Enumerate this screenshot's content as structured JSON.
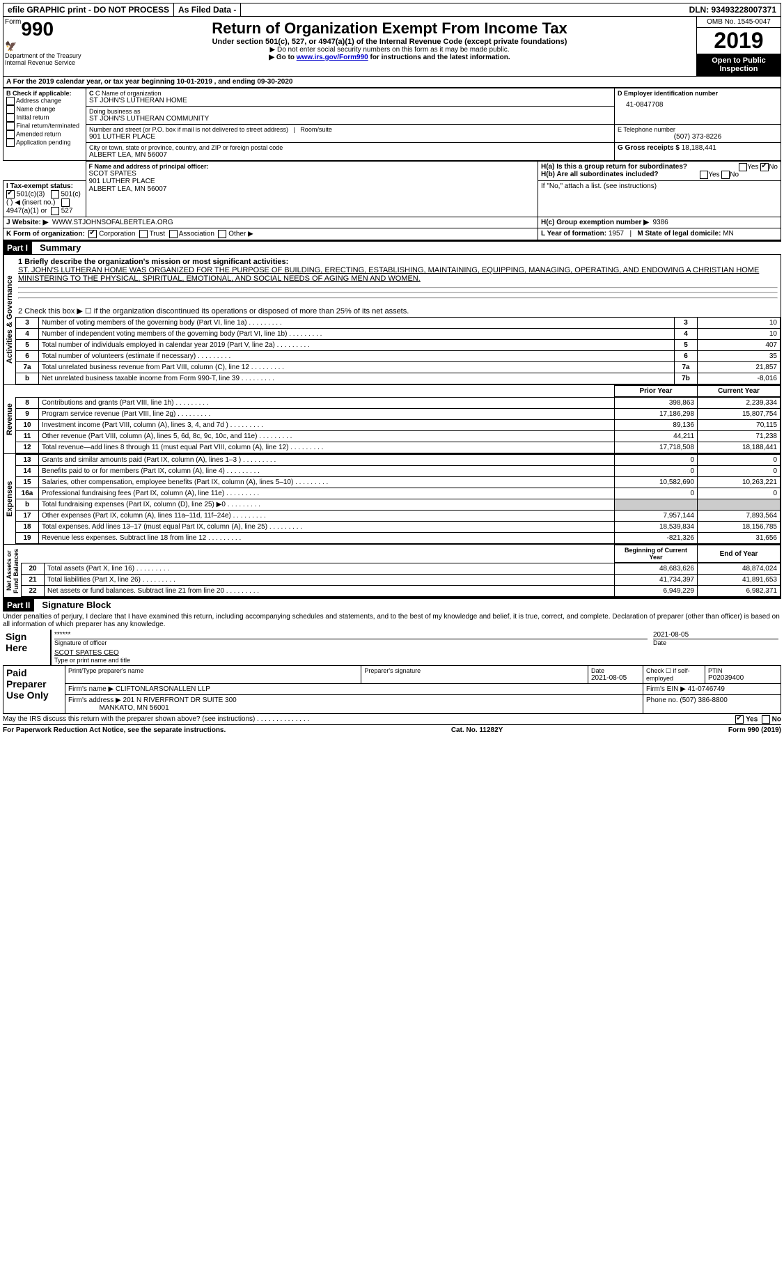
{
  "topbar": {
    "efile": "efile GRAPHIC print - DO NOT PROCESS",
    "asfiled": "As Filed Data -",
    "dln": "DLN: 93493228007371"
  },
  "header": {
    "form_prefix": "Form",
    "form_no": "990",
    "dept": "Department of the Treasury\nInternal Revenue Service",
    "title": "Return of Organization Exempt From Income Tax",
    "subtitle": "Under section 501(c), 527, or 4947(a)(1) of the Internal Revenue Code (except private foundations)",
    "sub2": "▶ Do not enter social security numbers on this form as it may be made public.",
    "sub3_pre": "▶ Go to ",
    "sub3_link": "www.irs.gov/Form990",
    "sub3_post": " for instructions and the latest information.",
    "omb": "OMB No. 1545-0047",
    "year": "2019",
    "open": "Open to Public Inspection"
  },
  "a_line": "A  For the 2019 calendar year, or tax year beginning 10-01-2019   , and ending 09-30-2020",
  "b": {
    "label": "B Check if applicable:",
    "opts": [
      "Address change",
      "Name change",
      "Initial return",
      "Final return/terminated",
      "Amended return",
      "Application pending"
    ]
  },
  "c": {
    "name_lbl": "C Name of organization",
    "name": "ST JOHN'S LUTHERAN HOME",
    "dba_lbl": "Doing business as",
    "dba": "ST JOHN'S LUTHERAN COMMUNITY",
    "addr_lbl": "Number and street (or P.O. box if mail is not delivered to street address)",
    "addr": "901 LUTHER PLACE",
    "room_lbl": "Room/suite",
    "city_lbl": "City or town, state or province, country, and ZIP or foreign postal code",
    "city": "ALBERT LEA, MN  56007"
  },
  "d": {
    "lbl": "D Employer identification number",
    "val": "41-0847708"
  },
  "e": {
    "lbl": "E Telephone number",
    "val": "(507) 373-8226"
  },
  "g": {
    "lbl": "G Gross receipts $",
    "val": "18,188,441"
  },
  "f": {
    "lbl": "F  Name and address of principal officer:",
    "name": "SCOT SPATES",
    "addr1": "901 LUTHER PLACE",
    "addr2": "ALBERT LEA, MN  56007"
  },
  "h": {
    "a": "H(a)  Is this a group return for subordinates?",
    "a_no": "No",
    "b": "H(b)  Are all subordinates included?",
    "b_note": "If \"No,\" attach a list. (see instructions)",
    "c": "H(c)  Group exemption number ▶",
    "c_val": "9386"
  },
  "i": {
    "lbl": "I  Tax-exempt status:",
    "opt1": "501(c)(3)",
    "opt2": "501(c) (  ) ◀ (insert no.)",
    "opt3": "4947(a)(1) or",
    "opt4": "527"
  },
  "j": {
    "lbl": "J  Website: ▶",
    "val": "WWW.STJOHNSOFALBERTLEA.ORG"
  },
  "k": {
    "lbl": "K Form of organization:",
    "corp": "Corporation",
    "trust": "Trust",
    "assoc": "Association",
    "other": "Other ▶"
  },
  "l": {
    "lbl": "L Year of formation:",
    "val": "1957"
  },
  "m": {
    "lbl": "M State of legal domicile:",
    "val": "MN"
  },
  "part1": {
    "tag": "Part I",
    "title": "Summary"
  },
  "mission_lbl": "1 Briefly describe the organization's mission or most significant activities:",
  "mission": "ST. JOHN'S LUTHERAN HOME WAS ORGANIZED FOR THE PURPOSE OF BUILDING, ERECTING, ESTABLISHING, MAINTAINING, EQUIPPING, MANAGING, OPERATING, AND ENDOWING A CHRISTIAN HOME MINISTERING TO THE PHYSICAL, SPIRITUAL, EMOTIONAL, AND SOCIAL NEEDS OF AGING MEN AND WOMEN.",
  "line2": "2  Check this box ▶ ☐ if the organization discontinued its operations or disposed of more than 25% of its net assets.",
  "gov_lines": [
    {
      "n": "3",
      "t": "Number of voting members of the governing body (Part VI, line 1a)",
      "box": "3",
      "v": "10"
    },
    {
      "n": "4",
      "t": "Number of independent voting members of the governing body (Part VI, line 1b)",
      "box": "4",
      "v": "10"
    },
    {
      "n": "5",
      "t": "Total number of individuals employed in calendar year 2019 (Part V, line 2a)",
      "box": "5",
      "v": "407"
    },
    {
      "n": "6",
      "t": "Total number of volunteers (estimate if necessary)",
      "box": "6",
      "v": "35"
    },
    {
      "n": "7a",
      "t": "Total unrelated business revenue from Part VIII, column (C), line 12",
      "box": "7a",
      "v": "21,857"
    },
    {
      "n": "b",
      "t": "Net unrelated business taxable income from Form 990-T, line 39",
      "box": "7b",
      "v": "-8,016"
    }
  ],
  "col_hdr": {
    "prior": "Prior Year",
    "current": "Current Year"
  },
  "rev_lines": [
    {
      "n": "8",
      "t": "Contributions and grants (Part VIII, line 1h)",
      "p": "398,863",
      "c": "2,239,334"
    },
    {
      "n": "9",
      "t": "Program service revenue (Part VIII, line 2g)",
      "p": "17,186,298",
      "c": "15,807,754"
    },
    {
      "n": "10",
      "t": "Investment income (Part VIII, column (A), lines 3, 4, and 7d )",
      "p": "89,136",
      "c": "70,115"
    },
    {
      "n": "11",
      "t": "Other revenue (Part VIII, column (A), lines 5, 6d, 8c, 9c, 10c, and 11e)",
      "p": "44,211",
      "c": "71,238"
    },
    {
      "n": "12",
      "t": "Total revenue—add lines 8 through 11 (must equal Part VIII, column (A), line 12)",
      "p": "17,718,508",
      "c": "18,188,441"
    }
  ],
  "exp_lines": [
    {
      "n": "13",
      "t": "Grants and similar amounts paid (Part IX, column (A), lines 1–3 )",
      "p": "0",
      "c": "0"
    },
    {
      "n": "14",
      "t": "Benefits paid to or for members (Part IX, column (A), line 4)",
      "p": "0",
      "c": "0"
    },
    {
      "n": "15",
      "t": "Salaries, other compensation, employee benefits (Part IX, column (A), lines 5–10)",
      "p": "10,582,690",
      "c": "10,263,221"
    },
    {
      "n": "16a",
      "t": "Professional fundraising fees (Part IX, column (A), line 11e)",
      "p": "0",
      "c": "0"
    },
    {
      "n": "b",
      "t": "Total fundraising expenses (Part IX, column (D), line 25) ▶0",
      "p": "",
      "c": "",
      "gray": true
    },
    {
      "n": "17",
      "t": "Other expenses (Part IX, column (A), lines 11a–11d, 11f–24e)",
      "p": "7,957,144",
      "c": "7,893,564"
    },
    {
      "n": "18",
      "t": "Total expenses. Add lines 13–17 (must equal Part IX, column (A), line 25)",
      "p": "18,539,834",
      "c": "18,156,785"
    },
    {
      "n": "19",
      "t": "Revenue less expenses. Subtract line 18 from line 12",
      "p": "-821,326",
      "c": "31,656"
    }
  ],
  "net_hdr": {
    "beg": "Beginning of Current Year",
    "end": "End of Year"
  },
  "net_lines": [
    {
      "n": "20",
      "t": "Total assets (Part X, line 16)",
      "p": "48,683,626",
      "c": "48,874,024"
    },
    {
      "n": "21",
      "t": "Total liabilities (Part X, line 26)",
      "p": "41,734,397",
      "c": "41,891,653"
    },
    {
      "n": "22",
      "t": "Net assets or fund balances. Subtract line 21 from line 20",
      "p": "6,949,229",
      "c": "6,982,371"
    }
  ],
  "vert": {
    "gov": "Activities & Governance",
    "rev": "Revenue",
    "exp": "Expenses",
    "net": "Net Assets or\nFund Balances"
  },
  "part2": {
    "tag": "Part II",
    "title": "Signature Block"
  },
  "perjury": "Under penalties of perjury, I declare that I have examined this return, including accompanying schedules and statements, and to the best of my knowledge and belief, it is true, correct, and complete. Declaration of preparer (other than officer) is based on all information of which preparer has any knowledge.",
  "sign": {
    "lbl": "Sign Here",
    "stars": "******",
    "sig_lbl": "Signature of officer",
    "date": "2021-08-05",
    "date_lbl": "Date",
    "name": "SCOT SPATES CEO",
    "name_lbl": "Type or print name and title"
  },
  "paid": {
    "lbl": "Paid Preparer Use Only",
    "prep_name_lbl": "Print/Type preparer's name",
    "prep_sig_lbl": "Preparer's signature",
    "date_lbl": "Date",
    "date": "2021-08-05",
    "check_lbl": "Check ☐ if self-employed",
    "ptin_lbl": "PTIN",
    "ptin": "P02039400",
    "firm_name_lbl": "Firm's name   ▶",
    "firm_name": "CLIFTONLARSONALLEN LLP",
    "firm_ein_lbl": "Firm's EIN ▶",
    "firm_ein": "41-0746749",
    "firm_addr_lbl": "Firm's address ▶",
    "firm_addr": "201 N RIVERFRONT DR SUITE 300",
    "firm_city": "MANKATO, MN  56001",
    "phone_lbl": "Phone no.",
    "phone": "(507) 386-8800"
  },
  "discuss": "May the IRS discuss this return with the preparer shown above? (see instructions)",
  "yes": "Yes",
  "no": "No",
  "footer": {
    "left": "For Paperwork Reduction Act Notice, see the separate instructions.",
    "mid": "Cat. No. 11282Y",
    "right_pre": "Form ",
    "right_form": "990",
    "right_post": " (2019)"
  }
}
